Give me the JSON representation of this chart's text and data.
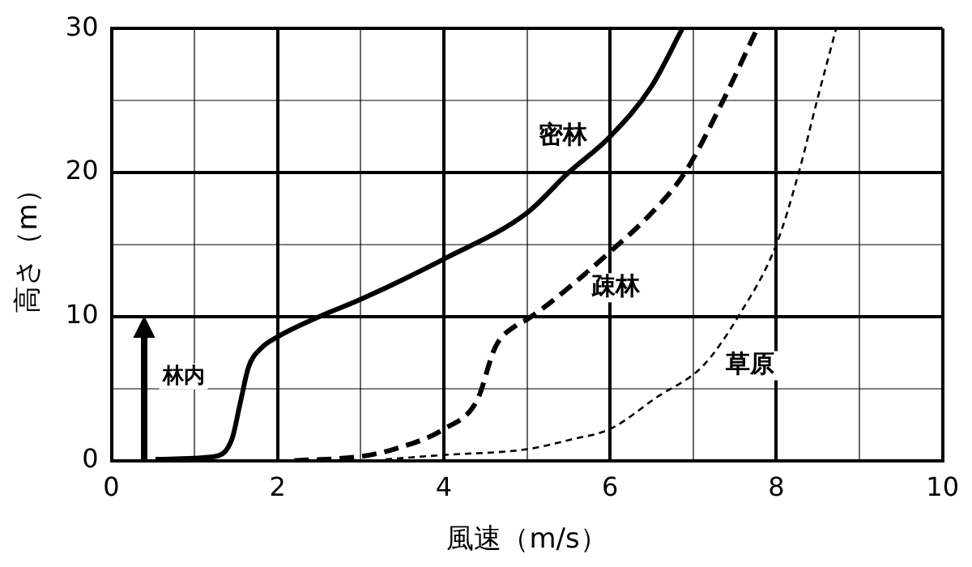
{
  "chart_data": {
    "type": "line",
    "xlabel": "風速（m/s）",
    "ylabel": "高さ（m）",
    "xlim": [
      0,
      10
    ],
    "ylim": [
      0,
      30
    ],
    "xticks": [
      0,
      {
        "value": 1,
        "label": null
      },
      2,
      {
        "value": 3,
        "label": null
      },
      4,
      {
        "value": 5,
        "label": null
      },
      6,
      {
        "value": 7,
        "label": null
      },
      8,
      {
        "value": 9,
        "label": null
      },
      10
    ],
    "yticks": [
      0,
      {
        "value": 5,
        "label": null
      },
      10,
      {
        "value": 15,
        "label": null
      },
      20,
      {
        "value": 25,
        "label": null
      },
      30
    ],
    "grid": true,
    "legend": false,
    "marker": "none",
    "annotations": [
      "林内"
    ],
    "series": [
      {
        "name": "密林",
        "color": "#000000",
        "line_style": "solid",
        "x": [
          0.53,
          1.25,
          1.45,
          1.55,
          1.65,
          1.8,
          2,
          2.5,
          3,
          4,
          5,
          5.5,
          6,
          6.5,
          6.87
        ],
        "values": [
          0.1,
          0.3,
          1.5,
          4,
          6.5,
          7.8,
          8.6,
          10,
          11.2,
          14,
          17.2,
          20,
          22.5,
          26,
          30
        ]
      },
      {
        "name": "疎林",
        "color": "#000000",
        "line_style": "dashed",
        "x": [
          2.2,
          3,
          3.4,
          4,
          4.4,
          4.62,
          4.87,
          5,
          5.5,
          6,
          6.5,
          6.9,
          7.36,
          7.77
        ],
        "values": [
          0,
          0.3,
          0.8,
          2.2,
          4.2,
          7.9,
          9.4,
          9.8,
          12,
          14.5,
          17.2,
          20,
          25,
          30
        ]
      },
      {
        "name": "草原",
        "color": "#000000",
        "line_style": "dotted",
        "x": [
          3.3,
          4,
          5,
          5.55,
          6,
          6.56,
          7.12,
          7.53,
          8,
          8.27,
          8.49,
          8.72
        ],
        "values": [
          0.1,
          0.4,
          0.8,
          1.5,
          2.2,
          4.4,
          6.6,
          9.9,
          15,
          20,
          25,
          30
        ]
      }
    ]
  }
}
